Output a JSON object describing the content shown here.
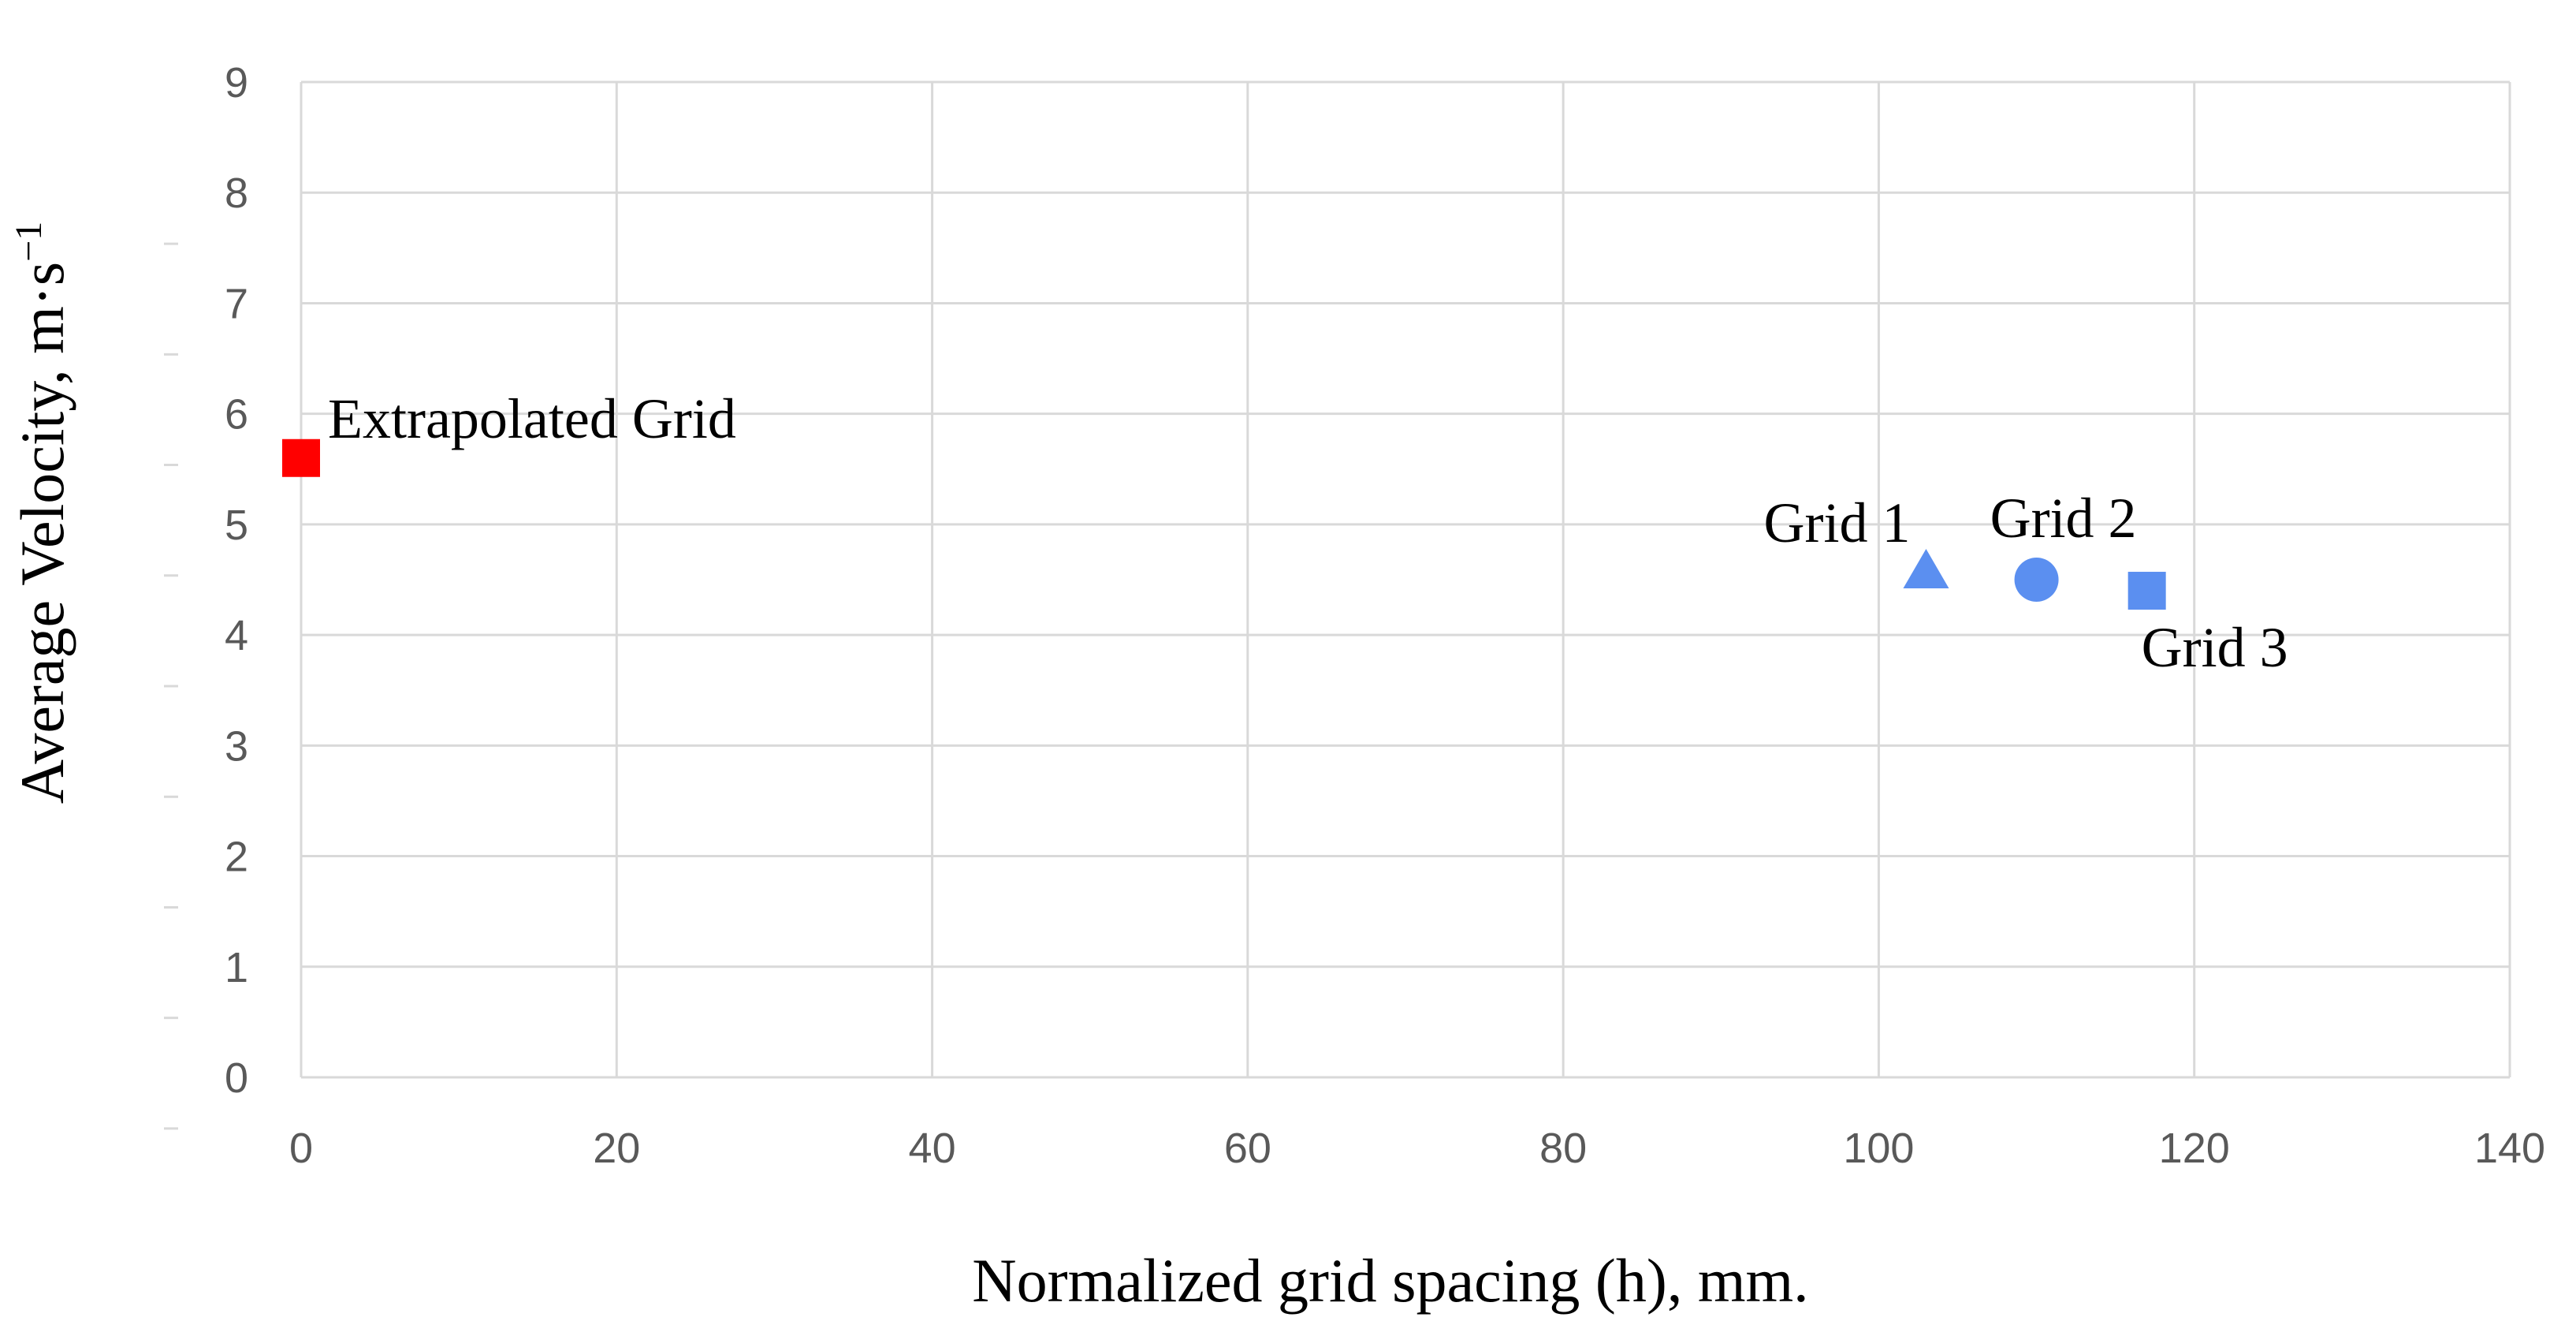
{
  "chart_data": {
    "type": "scatter",
    "title": "",
    "xlabel": "Normalized grid spacing (h), mm.",
    "ylabel": "Average Velocity, m·s⁻¹",
    "ylabel_main": "Average Velocity, m·s",
    "ylabel_sup": "−1",
    "xlim": [
      0,
      140
    ],
    "ylim": [
      0,
      9
    ],
    "x_ticks": [
      "0",
      "20",
      "40",
      "60",
      "80",
      "100",
      "120",
      "140"
    ],
    "y_ticks": [
      "0",
      "1",
      "2",
      "3",
      "4",
      "5",
      "6",
      "7",
      "8",
      "9"
    ],
    "grid": true,
    "legend": "none",
    "points": [
      {
        "label": "Extrapolated Grid",
        "x": 0,
        "y": 5.6,
        "marker": "square",
        "color": "#ff0000",
        "label_side": "upper-right"
      },
      {
        "label": "Grid 1",
        "x": 103,
        "y": 4.6,
        "marker": "triangle",
        "color": "#5b8ff0",
        "label_side": "upper-left"
      },
      {
        "label": "Grid 2",
        "x": 110,
        "y": 4.5,
        "marker": "circle",
        "color": "#5b8ff0",
        "label_side": "above"
      },
      {
        "label": "Grid 3",
        "x": 117,
        "y": 4.4,
        "marker": "square",
        "color": "#5b8ff0",
        "label_side": "below-right"
      }
    ]
  }
}
